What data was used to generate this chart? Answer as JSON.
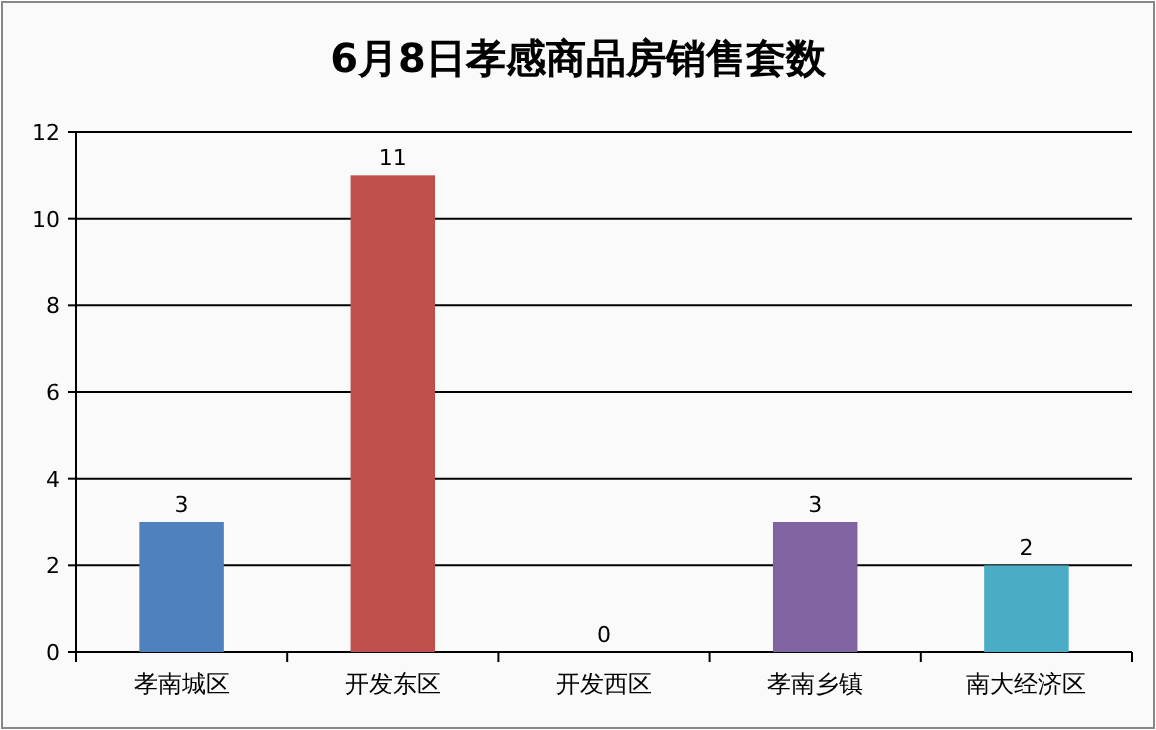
{
  "chart_data": {
    "type": "bar",
    "title": "6月8日孝感商品房销售套数",
    "categories": [
      "孝南城区",
      "开发东区",
      "开发西区",
      "孝南乡镇",
      "南大经济区"
    ],
    "values": [
      3,
      11,
      0,
      3,
      2
    ],
    "colors": [
      "#4f81bd",
      "#c0504d",
      "#9bbb59",
      "#8064a2",
      "#4bacc6"
    ],
    "ylim": [
      0,
      12
    ],
    "yticks": [
      0,
      2,
      4,
      6,
      8,
      10,
      12
    ],
    "grid": "y",
    "data_labels": true
  }
}
